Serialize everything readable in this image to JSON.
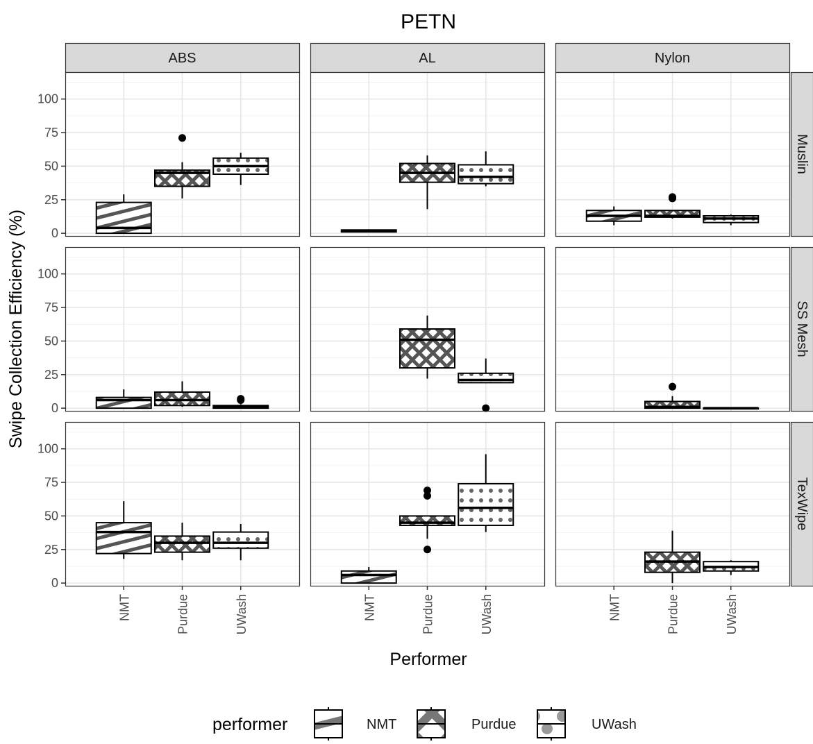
{
  "chart_data": {
    "type": "boxplot",
    "title": "PETN",
    "xlabel": "Performer",
    "ylabel": "Swipe Collection Efficiency (%)",
    "ylim": [
      -2,
      120
    ],
    "yticks": [
      0,
      25,
      50,
      75,
      100
    ],
    "grid": true,
    "categories": [
      "NMT",
      "Purdue",
      "UWash"
    ],
    "col_facets": [
      "ABS",
      "AL",
      "Nylon"
    ],
    "row_facets": [
      "Muslin",
      "SS Mesh",
      "TexWipe"
    ],
    "legend": {
      "title": "performer",
      "position": "bottom",
      "entries": [
        "NMT",
        "Purdue",
        "UWash"
      ]
    },
    "pattern_names": {
      "NMT": "stripe",
      "Purdue": "crosshatch",
      "UWash": "circle"
    },
    "panels": [
      {
        "row": "Muslin",
        "col": "ABS",
        "boxes": [
          {
            "performer": "NMT",
            "lower_whisker": 0,
            "q1": 0,
            "median": 4,
            "q3": 23,
            "upper_whisker": 29,
            "outliers": []
          },
          {
            "performer": "Purdue",
            "lower_whisker": 26,
            "q1": 35,
            "median": 45,
            "q3": 47,
            "upper_whisker": 53,
            "outliers": [
              71
            ]
          },
          {
            "performer": "UWash",
            "lower_whisker": 36,
            "q1": 44,
            "median": 50,
            "q3": 56,
            "upper_whisker": 60,
            "outliers": []
          }
        ]
      },
      {
        "row": "Muslin",
        "col": "AL",
        "boxes": [
          {
            "performer": "NMT",
            "lower_whisker": 1,
            "q1": 1,
            "median": 2,
            "q3": 2.5,
            "upper_whisker": 3,
            "outliers": []
          },
          {
            "performer": "Purdue",
            "lower_whisker": 18,
            "q1": 38,
            "median": 45,
            "q3": 52,
            "upper_whisker": 58,
            "outliers": []
          },
          {
            "performer": "UWash",
            "lower_whisker": 35,
            "q1": 37,
            "median": 42,
            "q3": 51,
            "upper_whisker": 61,
            "outliers": []
          }
        ]
      },
      {
        "row": "Muslin",
        "col": "Nylon",
        "boxes": [
          {
            "performer": "NMT",
            "lower_whisker": 6,
            "q1": 9,
            "median": 13,
            "q3": 17,
            "upper_whisker": 20,
            "outliers": []
          },
          {
            "performer": "Purdue",
            "lower_whisker": 11,
            "q1": 12,
            "median": 13,
            "q3": 17,
            "upper_whisker": 17,
            "outliers": [
              26,
              27
            ]
          },
          {
            "performer": "UWash",
            "lower_whisker": 6,
            "q1": 8,
            "median": 11,
            "q3": 13,
            "upper_whisker": 14,
            "outliers": []
          }
        ]
      },
      {
        "row": "SS Mesh",
        "col": "ABS",
        "boxes": [
          {
            "performer": "NMT",
            "lower_whisker": 0,
            "q1": 0,
            "median": 6,
            "q3": 8,
            "upper_whisker": 14,
            "outliers": []
          },
          {
            "performer": "Purdue",
            "lower_whisker": 1,
            "q1": 2,
            "median": 6,
            "q3": 12,
            "upper_whisker": 20,
            "outliers": []
          },
          {
            "performer": "UWash",
            "lower_whisker": 0,
            "q1": 0,
            "median": 1,
            "q3": 2,
            "upper_whisker": 3,
            "outliers": [
              6,
              7
            ]
          }
        ]
      },
      {
        "row": "SS Mesh",
        "col": "AL",
        "boxes": [
          {
            "performer": "Purdue",
            "lower_whisker": 22,
            "q1": 30,
            "median": 51,
            "q3": 59,
            "upper_whisker": 69,
            "outliers": []
          },
          {
            "performer": "UWash",
            "lower_whisker": 19,
            "q1": 19,
            "median": 21,
            "q3": 26,
            "upper_whisker": 37,
            "outliers": [
              0
            ]
          }
        ]
      },
      {
        "row": "SS Mesh",
        "col": "Nylon",
        "boxes": [
          {
            "performer": "Purdue",
            "lower_whisker": 0,
            "q1": 0,
            "median": 1,
            "q3": 5,
            "upper_whisker": 9,
            "outliers": [
              16
            ]
          },
          {
            "performer": "UWash",
            "lower_whisker": 0,
            "q1": 0,
            "median": 0,
            "q3": 0,
            "upper_whisker": 0,
            "outliers": []
          }
        ]
      },
      {
        "row": "TexWipe",
        "col": "ABS",
        "boxes": [
          {
            "performer": "NMT",
            "lower_whisker": 18,
            "q1": 22,
            "median": 38,
            "q3": 45,
            "upper_whisker": 61,
            "outliers": []
          },
          {
            "performer": "Purdue",
            "lower_whisker": 17,
            "q1": 23,
            "median": 30,
            "q3": 35,
            "upper_whisker": 45,
            "outliers": []
          },
          {
            "performer": "UWash",
            "lower_whisker": 17,
            "q1": 26,
            "median": 30,
            "q3": 38,
            "upper_whisker": 44,
            "outliers": []
          }
        ]
      },
      {
        "row": "TexWipe",
        "col": "AL",
        "boxes": [
          {
            "performer": "NMT",
            "lower_whisker": 0,
            "q1": 0,
            "median": 6,
            "q3": 9,
            "upper_whisker": 12,
            "outliers": []
          },
          {
            "performer": "Purdue",
            "lower_whisker": 33,
            "q1": 43,
            "median": 45,
            "q3": 50,
            "upper_whisker": 50,
            "outliers": [
              25,
              65,
              69
            ]
          },
          {
            "performer": "UWash",
            "lower_whisker": 38,
            "q1": 43,
            "median": 56,
            "q3": 74,
            "upper_whisker": 96,
            "outliers": []
          }
        ]
      },
      {
        "row": "TexWipe",
        "col": "Nylon",
        "boxes": [
          {
            "performer": "Purdue",
            "lower_whisker": 0,
            "q1": 8,
            "median": 16,
            "q3": 23,
            "upper_whisker": 39,
            "outliers": []
          },
          {
            "performer": "UWash",
            "lower_whisker": 6,
            "q1": 9,
            "median": 12,
            "q3": 16,
            "upper_whisker": 17,
            "outliers": []
          }
        ]
      }
    ]
  }
}
